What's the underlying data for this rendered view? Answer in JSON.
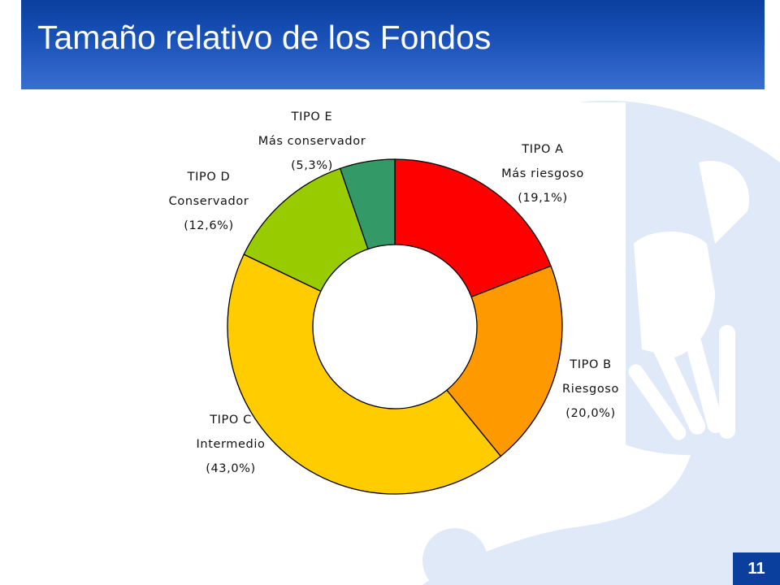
{
  "slide": {
    "title": "Tamaño relativo de los Fondos",
    "page_number": "11"
  },
  "colors": {
    "header_start": "#0b3f9e",
    "header_end": "#3a6ed0",
    "watermark": "#dfe9f8",
    "page_badge": "#0b3f9e"
  },
  "chart_data": {
    "type": "pie",
    "subtype": "donut",
    "title": "",
    "start": "12 o'clock",
    "direction": "clockwise",
    "slices": [
      {
        "key": "A",
        "name": "TIPO A",
        "description": "Más riesgoso",
        "value": 19.1,
        "value_label": "(19,1%)",
        "color": "#ff0000"
      },
      {
        "key": "B",
        "name": "TIPO B",
        "description": "Riesgoso",
        "value": 20.0,
        "value_label": "(20,0%)",
        "color": "#ff9900"
      },
      {
        "key": "C",
        "name": "TIPO C",
        "description": "Intermedio",
        "value": 43.0,
        "value_label": "(43,0%)",
        "color": "#ffcc00"
      },
      {
        "key": "D",
        "name": "TIPO D",
        "description": "Conservador",
        "value": 12.6,
        "value_label": "(12,6%)",
        "color": "#99cc00"
      },
      {
        "key": "E",
        "name": "TIPO E",
        "description": "Más conservador",
        "value": 5.3,
        "value_label": "(5,3%)",
        "color": "#339966"
      }
    ]
  }
}
